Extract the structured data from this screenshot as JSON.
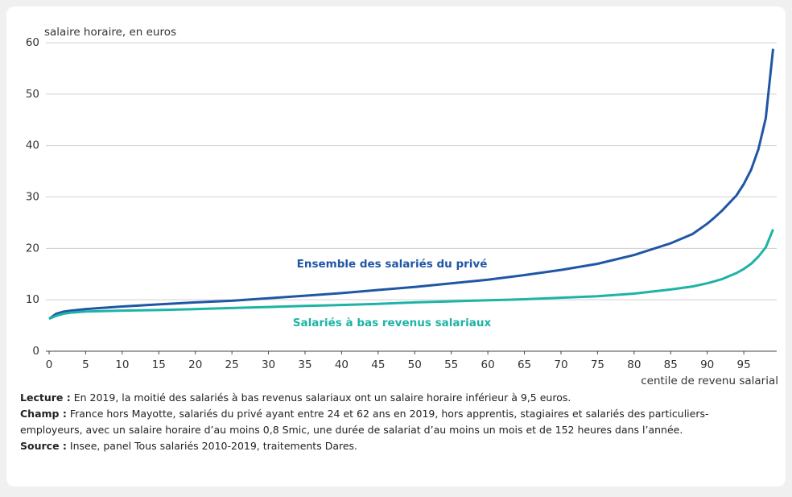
{
  "chart_data": {
    "type": "line",
    "y_label": "salaire horaire, en euros",
    "x_label": "centile de revenu salarial",
    "x": [
      0,
      1,
      2,
      3,
      5,
      10,
      15,
      20,
      25,
      30,
      35,
      40,
      45,
      50,
      55,
      60,
      65,
      70,
      75,
      80,
      85,
      88,
      90,
      91,
      92,
      93,
      94,
      95,
      96,
      97,
      98,
      99
    ],
    "series": [
      {
        "name": "Ensemble des salariés du privé",
        "color": "#1f57a5",
        "values": [
          6.3,
          7.3,
          7.7,
          7.9,
          8.2,
          8.7,
          9.1,
          9.5,
          9.8,
          10.3,
          10.8,
          11.3,
          11.9,
          12.5,
          13.2,
          13.9,
          14.8,
          15.8,
          17.0,
          18.7,
          21.0,
          22.8,
          24.8,
          26.0,
          27.3,
          28.8,
          30.3,
          32.5,
          35.3,
          39.3,
          45.3,
          58.8
        ]
      },
      {
        "name": "Salariés à bas revenus salariaux",
        "color": "#1db3a6",
        "values": [
          6.3,
          6.9,
          7.3,
          7.5,
          7.7,
          7.9,
          8.0,
          8.2,
          8.4,
          8.6,
          8.8,
          9.0,
          9.2,
          9.5,
          9.7,
          9.9,
          10.1,
          10.4,
          10.7,
          11.2,
          12.0,
          12.6,
          13.2,
          13.6,
          14.0,
          14.6,
          15.2,
          16.0,
          17.0,
          18.4,
          20.2,
          23.7
        ]
      }
    ],
    "xlim": [
      0,
      99.5
    ],
    "xticks": [
      0,
      5,
      10,
      15,
      20,
      25,
      30,
      35,
      40,
      45,
      50,
      55,
      60,
      65,
      70,
      75,
      80,
      85,
      90,
      95
    ],
    "ylim": [
      0,
      60
    ],
    "yticks": [
      0,
      10,
      20,
      30,
      40,
      50,
      60
    ],
    "grid": true,
    "notes": [
      {
        "label": "Lecture :",
        "text": "En 2019, la moitié des salariés à bas revenus salariaux ont un salaire horaire inférieur à 9,5 euros."
      },
      {
        "label": "Champ :",
        "text": "France hors Mayotte, salariés du privé ayant entre 24 et 62 ans en 2019, hors apprentis, stagiaires et salariés des particuliers-employeurs, avec un salaire horaire d’au moins 0,8 Smic, une durée de salariat d’au moins un mois et de 152 heures dans l’année."
      },
      {
        "label": "Source :",
        "text": "Insee, panel Tous salariés 2010-2019, traitements Dares."
      }
    ]
  }
}
